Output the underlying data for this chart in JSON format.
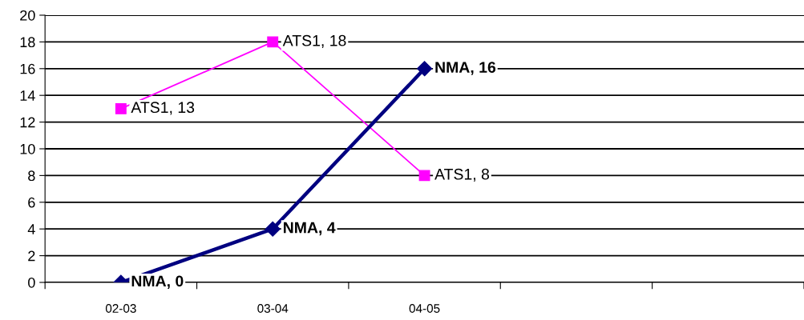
{
  "chart_data": {
    "type": "line",
    "categories": [
      "02-03",
      "03-04",
      "04-05",
      null,
      null
    ],
    "ylim": [
      0,
      20
    ],
    "yticks": [
      0,
      2,
      4,
      6,
      8,
      10,
      12,
      14,
      16,
      18,
      20
    ],
    "grid": "y",
    "legend": false,
    "series": [
      {
        "color": "#ff00ff",
        "marker": "square",
        "values": [
          13,
          18,
          8,
          null,
          null
        ],
        "value_labels": [
          "ATS1, 13",
          "ATS1, 18",
          "ATS1, 8",
          null,
          null
        ]
      },
      {
        "color": "#000080",
        "marker": "diamond",
        "values": [
          0,
          4,
          16,
          null,
          null
        ],
        "value_labels": [
          "NMA, 0",
          "NMA, 4",
          "NMA, 16",
          null,
          null
        ]
      }
    ]
  }
}
